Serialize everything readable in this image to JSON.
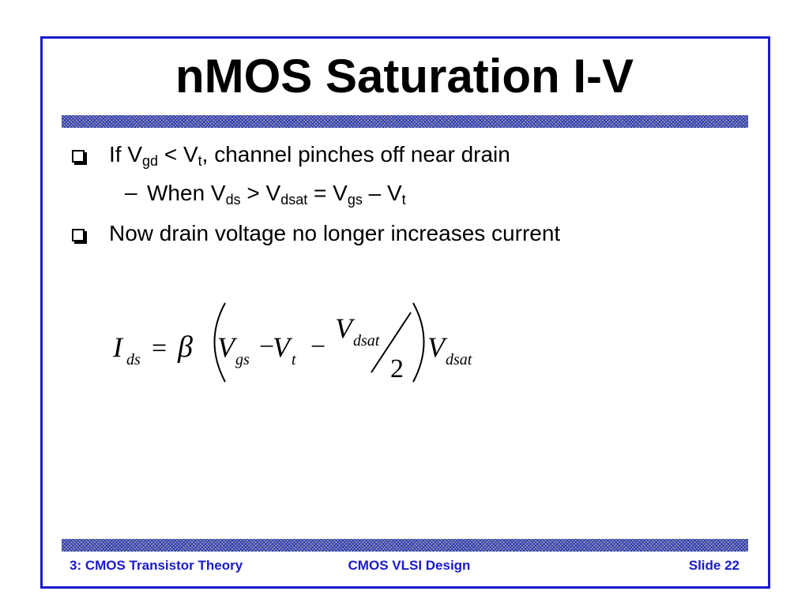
{
  "header": {
    "title": "nMOS Saturation I-V"
  },
  "bullets": [
    {
      "level": 1,
      "pieces": [
        "If V",
        "gd",
        " < V",
        "t",
        ", channel pinches off near drain"
      ]
    },
    {
      "level": 2,
      "pieces": [
        "When V",
        "ds",
        " > V",
        "dsat",
        " = V",
        "gs",
        " – V",
        "t"
      ]
    },
    {
      "level": 1,
      "pieces": [
        "Now drain voltage no longer increases current"
      ]
    }
  ],
  "equation": {
    "lhs": "I",
    "lhs_sub": "ds",
    "eq": "=",
    "beta": "β",
    "v1": "V",
    "v1_sub": "gs",
    "minus1": "−",
    "v2": "V",
    "v2_sub": "t",
    "minus2": "−",
    "num": "V",
    "num_sub": "dsat",
    "den": "2",
    "v3": "V",
    "v3_sub": "dsat"
  },
  "footer": {
    "left": "3: CMOS Transistor Theory",
    "center": "CMOS VLSI Design",
    "right": "Slide 22"
  }
}
